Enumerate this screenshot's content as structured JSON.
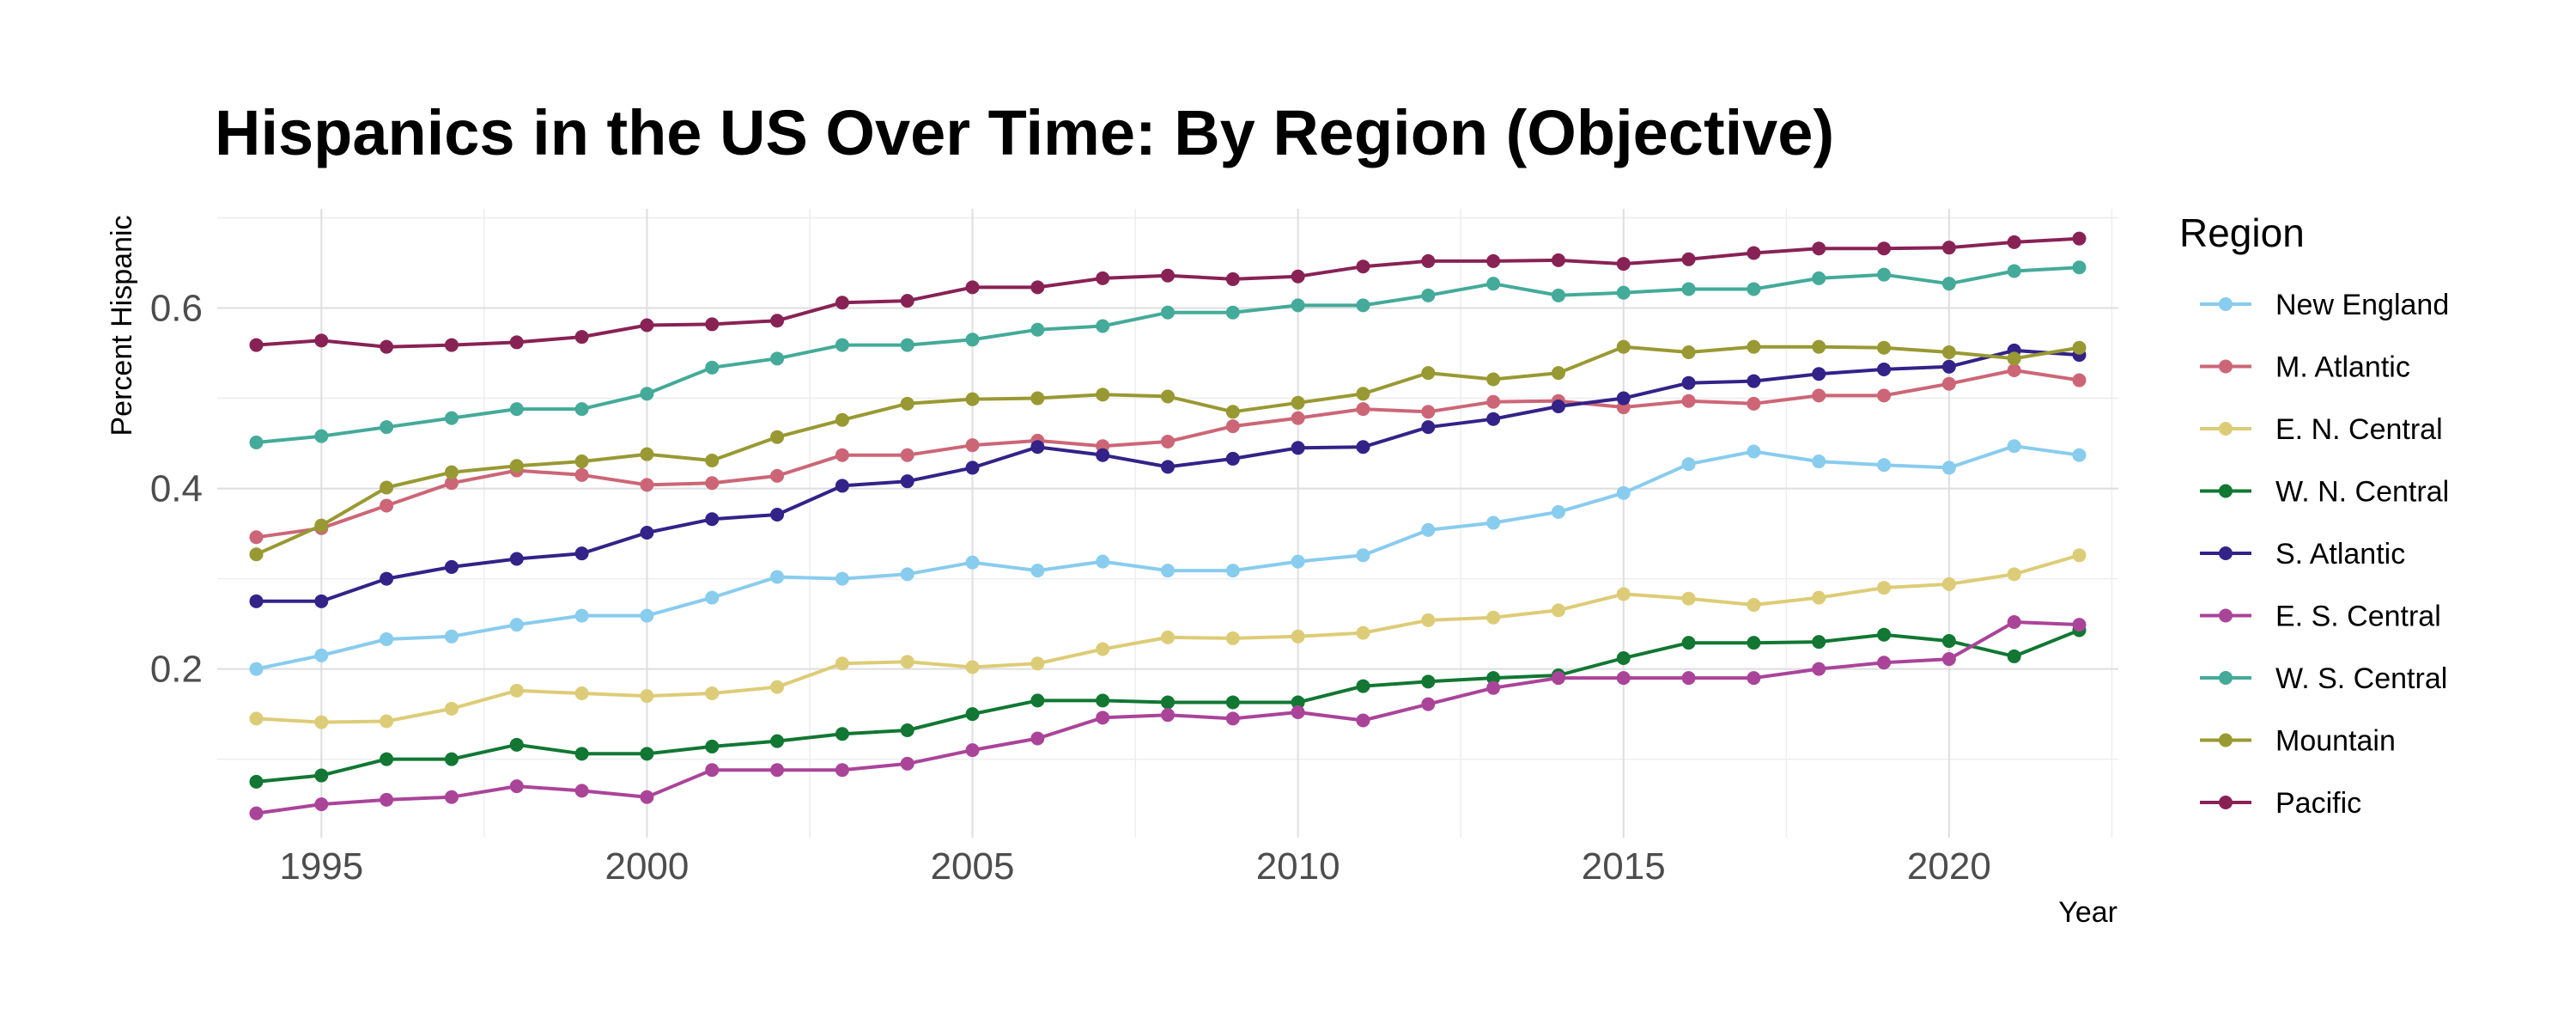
{
  "chart_data": {
    "type": "line",
    "title": "Hispanics in the US Over Time: By Region (Objective)",
    "xlabel": "Year",
    "ylabel": "Percent Hispanic",
    "xlim": [
      1993.4,
      2022.6
    ],
    "ylim": [
      0.013,
      0.71
    ],
    "x_ticks": [
      1995,
      2000,
      2005,
      2010,
      2015,
      2020
    ],
    "x_tick_labels": [
      "1995",
      "2000",
      "2005",
      "2010",
      "2015",
      "2020"
    ],
    "y_ticks": [
      0.2,
      0.4,
      0.6
    ],
    "y_tick_labels": [
      "0.2",
      "0.4",
      "0.6"
    ],
    "grid": true,
    "legend_title": "Region",
    "legend_position": "right",
    "x": [
      1994,
      1995,
      1996,
      1997,
      1998,
      1999,
      2000,
      2001,
      2002,
      2003,
      2004,
      2005,
      2006,
      2007,
      2008,
      2009,
      2010,
      2011,
      2012,
      2013,
      2014,
      2015,
      2016,
      2017,
      2018,
      2019,
      2020,
      2021,
      2022
    ],
    "series": [
      {
        "name": "New England",
        "color": "#88ccee",
        "values": [
          0.2,
          0.215,
          0.233,
          0.236,
          0.249,
          0.259,
          0.259,
          0.279,
          0.302,
          0.3,
          0.305,
          0.318,
          0.309,
          0.319,
          0.309,
          0.309,
          0.319,
          0.326,
          0.354,
          0.362,
          0.374,
          0.395,
          0.427,
          0.441,
          0.43,
          0.426,
          0.423,
          0.447,
          0.437
        ]
      },
      {
        "name": "M. Atlantic",
        "color": "#cc6677",
        "values": [
          0.346,
          0.356,
          0.381,
          0.406,
          0.42,
          0.415,
          0.404,
          0.406,
          0.414,
          0.437,
          0.437,
          0.448,
          0.453,
          0.447,
          0.452,
          0.469,
          0.478,
          0.488,
          0.485,
          0.496,
          0.497,
          0.49,
          0.497,
          0.494,
          0.503,
          0.503,
          0.516,
          0.531,
          0.52
        ]
      },
      {
        "name": "E. N. Central",
        "color": "#ddcc77",
        "values": [
          0.145,
          0.141,
          0.142,
          0.156,
          0.176,
          0.173,
          0.17,
          0.173,
          0.18,
          0.206,
          0.208,
          0.202,
          0.206,
          0.222,
          0.235,
          0.234,
          0.236,
          0.24,
          0.254,
          0.257,
          0.265,
          0.283,
          0.278,
          0.271,
          0.279,
          0.29,
          0.294,
          0.305,
          0.326
        ]
      },
      {
        "name": "W. N. Central",
        "color": "#117733",
        "values": [
          0.075,
          0.082,
          0.1,
          0.1,
          0.116,
          0.106,
          0.106,
          0.114,
          0.12,
          0.128,
          0.132,
          0.15,
          0.165,
          0.165,
          0.163,
          0.163,
          0.163,
          0.181,
          0.186,
          0.19,
          0.193,
          0.212,
          0.229,
          0.229,
          0.23,
          0.238,
          0.231,
          0.214,
          0.243
        ]
      },
      {
        "name": "S. Atlantic",
        "color": "#332288",
        "values": [
          0.275,
          0.275,
          0.3,
          0.313,
          0.322,
          0.328,
          0.351,
          0.366,
          0.371,
          0.403,
          0.408,
          0.423,
          0.446,
          0.437,
          0.424,
          0.433,
          0.445,
          0.446,
          0.468,
          0.477,
          0.491,
          0.5,
          0.517,
          0.519,
          0.527,
          0.532,
          0.535,
          0.553,
          0.548
        ]
      },
      {
        "name": "E. S. Central",
        "color": "#aa4499",
        "values": [
          0.04,
          0.05,
          0.055,
          0.058,
          0.07,
          0.065,
          0.058,
          0.088,
          0.088,
          0.088,
          0.095,
          0.11,
          0.123,
          0.146,
          0.149,
          0.145,
          0.152,
          0.143,
          0.161,
          0.179,
          0.19,
          0.19,
          0.19,
          0.19,
          0.2,
          0.207,
          0.211,
          0.252,
          0.249
        ]
      },
      {
        "name": "W. S. Central",
        "color": "#44aa99",
        "values": [
          0.451,
          0.458,
          0.468,
          0.478,
          0.488,
          0.488,
          0.505,
          0.534,
          0.544,
          0.559,
          0.559,
          0.565,
          0.576,
          0.58,
          0.595,
          0.595,
          0.603,
          0.603,
          0.614,
          0.627,
          0.614,
          0.617,
          0.621,
          0.621,
          0.633,
          0.637,
          0.627,
          0.641,
          0.645
        ]
      },
      {
        "name": "Mountain",
        "color": "#999933",
        "values": [
          0.327,
          0.359,
          0.401,
          0.418,
          0.425,
          0.43,
          0.438,
          0.431,
          0.457,
          0.476,
          0.494,
          0.499,
          0.5,
          0.504,
          0.502,
          0.485,
          0.495,
          0.505,
          0.528,
          0.521,
          0.528,
          0.557,
          0.551,
          0.557,
          0.557,
          0.556,
          0.551,
          0.544,
          0.556
        ]
      },
      {
        "name": "Pacific",
        "color": "#882255",
        "values": [
          0.559,
          0.564,
          0.557,
          0.559,
          0.562,
          0.568,
          0.581,
          0.582,
          0.586,
          0.606,
          0.608,
          0.623,
          0.623,
          0.633,
          0.636,
          0.632,
          0.635,
          0.646,
          0.652,
          0.652,
          0.653,
          0.649,
          0.654,
          0.661,
          0.666,
          0.666,
          0.667,
          0.673,
          0.677
        ]
      }
    ]
  }
}
